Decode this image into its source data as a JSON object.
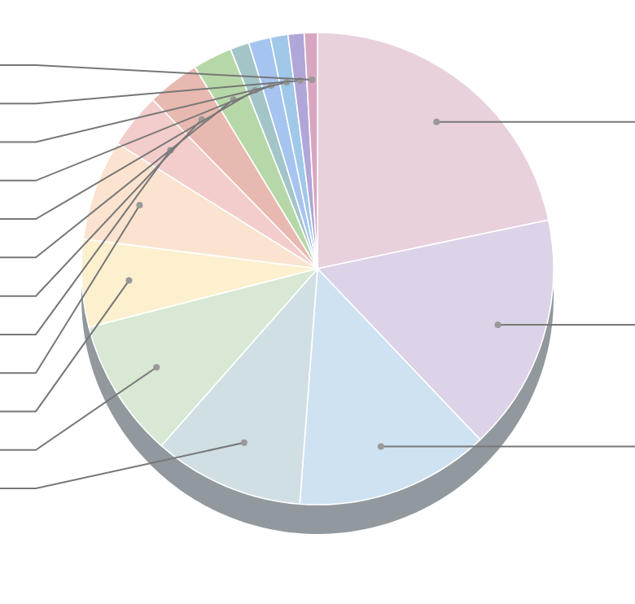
{
  "chart_data": {
    "type": "pie",
    "categories": [
      null,
      null,
      null,
      null,
      null,
      null,
      null,
      null,
      null,
      null,
      null,
      null,
      null,
      null,
      null
    ],
    "values": [
      21.7,
      16.2,
      13.3,
      10.3,
      9.5,
      6,
      6.9,
      3.8,
      3.6,
      2.7,
      1.3,
      1.5,
      1.2,
      1.1,
      0.9
    ],
    "colors": [
      "#e8d0dc",
      "#dcd3e8",
      "#cfe2f2",
      "#d0dfe4",
      "#d8e8d4",
      "#fdf0cf",
      "#fbe3cf",
      "#f3cccc",
      "#e8b9b0",
      "#b6d8a8",
      "#a3c5c8",
      "#a6c4f0",
      "#a0c8e8",
      "#b0a6d8",
      "#d8a6c0"
    ]
  }
}
